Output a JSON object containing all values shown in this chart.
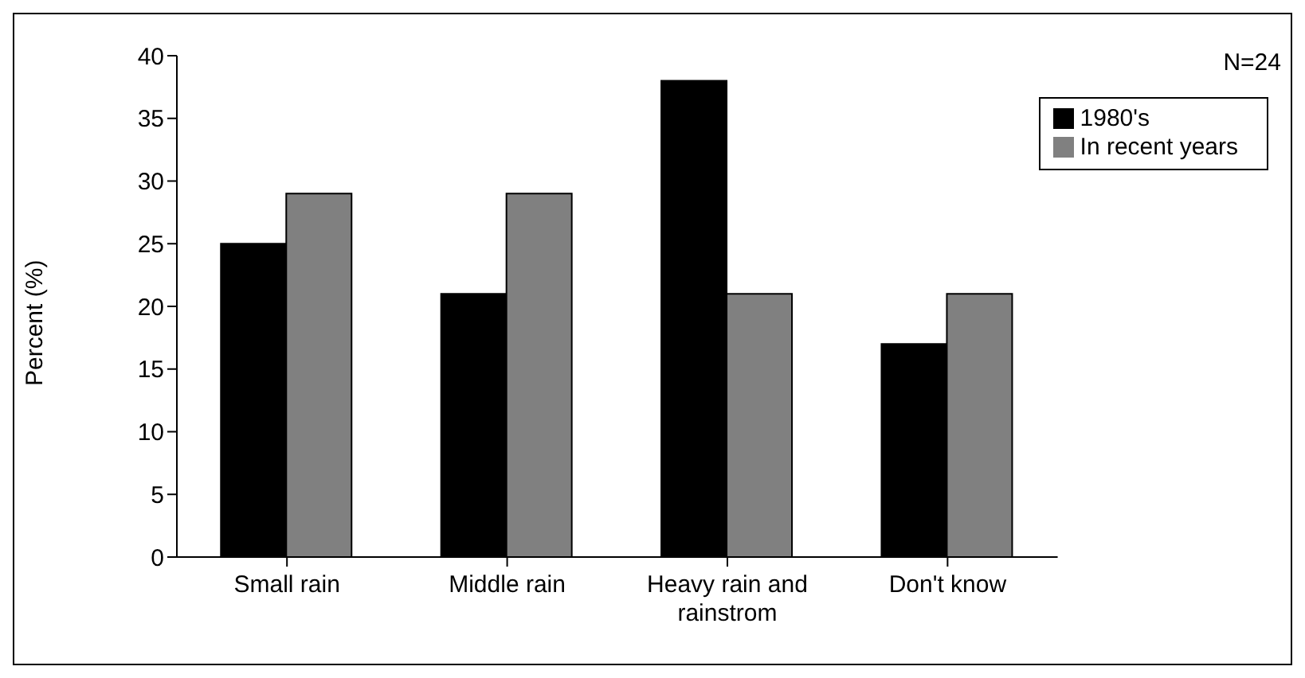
{
  "chart_data": {
    "type": "bar",
    "ylabel": "Percent (%)",
    "categories": [
      "Small rain",
      "Middle rain",
      "Heavy rain and rainstrom",
      "Don't know"
    ],
    "series": [
      {
        "name": "1980's",
        "color": "#000000",
        "values": [
          25,
          21,
          38,
          17
        ]
      },
      {
        "name": "In recent years",
        "color": "#808080",
        "values": [
          29,
          29,
          21,
          21
        ]
      }
    ],
    "ylim": [
      0,
      40
    ],
    "yticks": [
      0,
      5,
      10,
      15,
      20,
      25,
      30,
      35,
      40
    ],
    "grid": false,
    "legend": "top right",
    "annotations": [
      "N=24"
    ]
  }
}
